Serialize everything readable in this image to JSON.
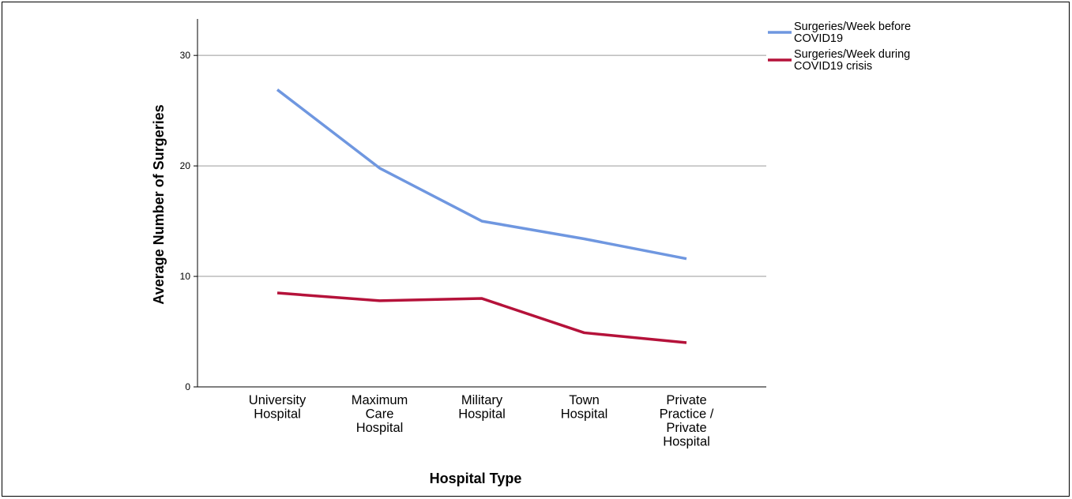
{
  "chart_data": {
    "type": "line",
    "categories": [
      [
        "University",
        "Hospital"
      ],
      [
        "Maximum",
        "Care",
        "Hospital"
      ],
      [
        "Military",
        "Hospital"
      ],
      [
        "Town",
        "Hospital"
      ],
      [
        "Private",
        "Practice /",
        "Private",
        "Hospital"
      ]
    ],
    "series": [
      {
        "name": [
          "Surgeries/Week before",
          "COVID19"
        ],
        "color": "#6f97e0",
        "values": [
          26.9,
          19.8,
          15.0,
          13.4,
          11.6
        ]
      },
      {
        "name": [
          "Surgeries/Week during",
          "COVID19 crisis"
        ],
        "color": "#b5123a",
        "values": [
          8.5,
          7.8,
          8.0,
          4.9,
          4.0
        ]
      }
    ],
    "xlabel": "Hospital Type",
    "ylabel": "Average Number of Surgeries",
    "yticks": [
      0,
      10,
      20,
      30
    ],
    "ylim": [
      0,
      33.3
    ],
    "grid": "horizontal",
    "legend_position": "top-right"
  }
}
